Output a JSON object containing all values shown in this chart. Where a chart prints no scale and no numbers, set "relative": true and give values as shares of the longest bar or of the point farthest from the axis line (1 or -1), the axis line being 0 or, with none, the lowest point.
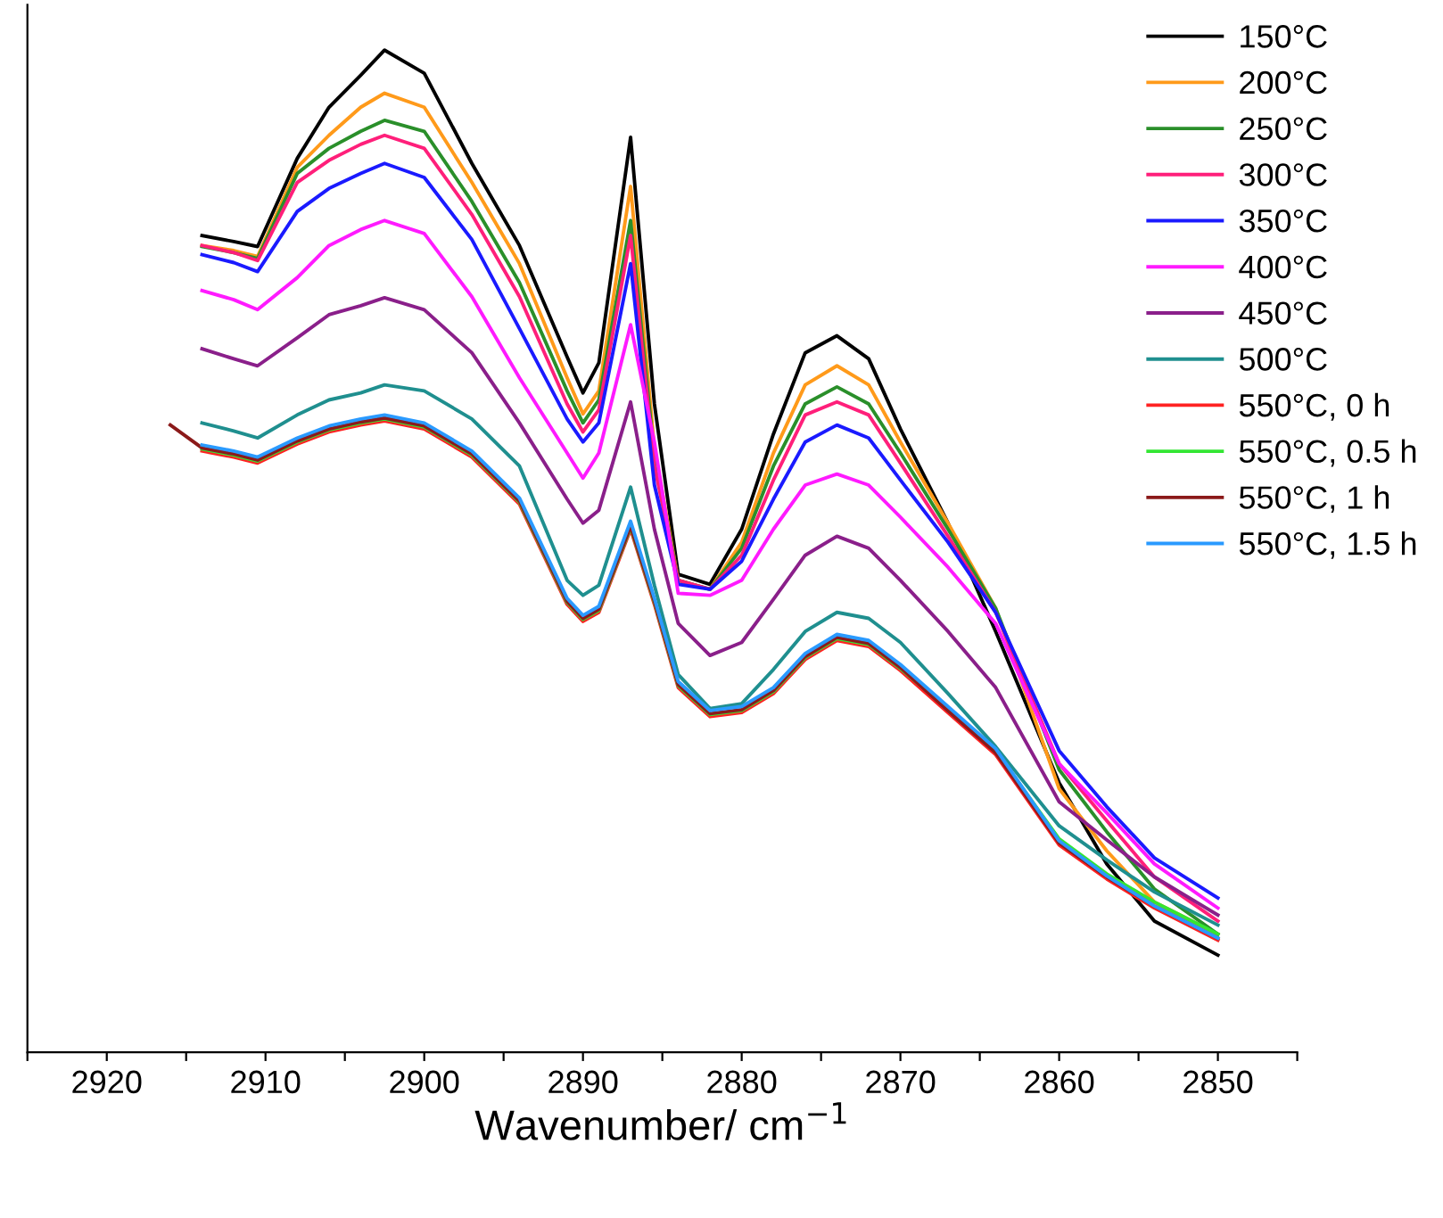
{
  "chart_data": {
    "type": "line",
    "relative": true,
    "xlabel": "Wavenumber/ cm$^{−1}$",
    "x": [
      2914,
      2912,
      2910.5,
      2908,
      2906,
      2904,
      2902.5,
      2900,
      2897,
      2894,
      2891,
      2890,
      2889,
      2887,
      2885.5,
      2884,
      2882,
      2880,
      2878,
      2876,
      2874,
      2872,
      2870,
      2867,
      2864,
      2860,
      2857,
      2854,
      2850
    ],
    "xlim": [
      2925,
      2845
    ],
    "xticks": [
      {
        "value": 2925,
        "label": null
      },
      2920,
      {
        "value": 2915,
        "label": null
      },
      2910,
      {
        "value": 2905,
        "label": null
      },
      2900,
      {
        "value": 2895,
        "label": null
      },
      2890,
      {
        "value": 2885,
        "label": null
      },
      2880,
      {
        "value": 2875,
        "label": null
      },
      2870,
      {
        "value": 2865,
        "label": null
      },
      2860,
      {
        "value": 2855,
        "label": null
      },
      2850,
      {
        "value": 2845,
        "label": null
      }
    ],
    "legend": "top right",
    "grid": false,
    "marker": "none",
    "line_style": "solid",
    "series": [
      {
        "name": "150°C",
        "color": "#000000",
        "values": [
          0.815,
          0.809,
          0.804,
          0.892,
          0.943,
          0.975,
          1.0,
          0.977,
          0.887,
          0.805,
          0.694,
          0.658,
          0.688,
          0.913,
          0.647,
          0.477,
          0.467,
          0.522,
          0.617,
          0.698,
          0.715,
          0.692,
          0.622,
          0.528,
          0.42,
          0.269,
          0.188,
          0.131,
          0.097
        ]
      },
      {
        "name": "200°C",
        "color": "#ff9a1a",
        "values": [
          0.805,
          0.8,
          0.794,
          0.883,
          0.915,
          0.943,
          0.957,
          0.943,
          0.868,
          0.787,
          0.673,
          0.637,
          0.66,
          0.864,
          0.603,
          0.471,
          0.462,
          0.509,
          0.598,
          0.666,
          0.685,
          0.666,
          0.609,
          0.528,
          0.443,
          0.263,
          0.201,
          0.15,
          0.118
        ]
      },
      {
        "name": "250°C",
        "color": "#2a8f2a",
        "values": [
          0.804,
          0.798,
          0.792,
          0.877,
          0.902,
          0.919,
          0.93,
          0.919,
          0.849,
          0.768,
          0.66,
          0.628,
          0.651,
          0.83,
          0.594,
          0.471,
          0.462,
          0.503,
          0.585,
          0.647,
          0.664,
          0.647,
          0.598,
          0.522,
          0.443,
          0.282,
          0.22,
          0.163,
          0.118
        ]
      },
      {
        "name": "300°C",
        "color": "#ff1f7a",
        "values": [
          0.805,
          0.798,
          0.79,
          0.868,
          0.89,
          0.906,
          0.915,
          0.902,
          0.836,
          0.754,
          0.647,
          0.619,
          0.641,
          0.815,
          0.585,
          0.471,
          0.462,
          0.496,
          0.571,
          0.636,
          0.649,
          0.636,
          0.588,
          0.515,
          0.439,
          0.288,
          0.231,
          0.175,
          0.131
        ]
      },
      {
        "name": "350°C",
        "color": "#1a1aff",
        "values": [
          0.796,
          0.788,
          0.779,
          0.839,
          0.862,
          0.877,
          0.887,
          0.873,
          0.811,
          0.722,
          0.632,
          0.609,
          0.628,
          0.787,
          0.566,
          0.467,
          0.462,
          0.49,
          0.552,
          0.609,
          0.626,
          0.613,
          0.571,
          0.509,
          0.439,
          0.301,
          0.245,
          0.194,
          0.154
        ]
      },
      {
        "name": "400°C",
        "color": "#ff1aff",
        "values": [
          0.76,
          0.751,
          0.741,
          0.773,
          0.805,
          0.821,
          0.83,
          0.817,
          0.754,
          0.673,
          0.598,
          0.573,
          0.598,
          0.726,
          0.609,
          0.458,
          0.456,
          0.471,
          0.522,
          0.566,
          0.577,
          0.566,
          0.534,
          0.484,
          0.428,
          0.288,
          0.239,
          0.188,
          0.144
        ]
      },
      {
        "name": "450°C",
        "color": "#8a1f8a",
        "values": [
          0.702,
          0.692,
          0.685,
          0.713,
          0.736,
          0.745,
          0.753,
          0.741,
          0.698,
          0.628,
          0.552,
          0.528,
          0.541,
          0.649,
          0.522,
          0.428,
          0.396,
          0.409,
          0.452,
          0.496,
          0.515,
          0.503,
          0.471,
          0.42,
          0.364,
          0.25,
          0.212,
          0.175,
          0.137
        ]
      },
      {
        "name": "500°C",
        "color": "#1f8f8f",
        "values": [
          0.628,
          0.62,
          0.613,
          0.636,
          0.651,
          0.658,
          0.666,
          0.66,
          0.632,
          0.585,
          0.471,
          0.456,
          0.466,
          0.564,
          0.466,
          0.377,
          0.343,
          0.348,
          0.382,
          0.42,
          0.439,
          0.433,
          0.409,
          0.358,
          0.305,
          0.226,
          0.192,
          0.16,
          0.127
        ]
      },
      {
        "name": "550°C, 0 h",
        "color": "#ff2222",
        "values": [
          0.6,
          0.594,
          0.588,
          0.607,
          0.619,
          0.626,
          0.63,
          0.622,
          0.594,
          0.547,
          0.447,
          0.43,
          0.439,
          0.522,
          0.447,
          0.364,
          0.335,
          0.339,
          0.358,
          0.392,
          0.411,
          0.405,
          0.381,
          0.339,
          0.297,
          0.207,
          0.173,
          0.144,
          0.112
        ]
      },
      {
        "name": "550°C, 0.5 h",
        "color": "#33e633",
        "values": [
          0.602,
          0.596,
          0.59,
          0.609,
          0.621,
          0.628,
          0.632,
          0.624,
          0.596,
          0.549,
          0.449,
          0.432,
          0.441,
          0.524,
          0.449,
          0.366,
          0.337,
          0.341,
          0.36,
          0.394,
          0.413,
          0.407,
          0.383,
          0.343,
          0.301,
          0.213,
          0.178,
          0.15,
          0.118
        ]
      },
      {
        "name": "550°C, 1 h",
        "color": "#8b1a1a",
        "x": [
          2916,
          2914,
          2912,
          2910.5,
          2908,
          2906,
          2904,
          2902.5,
          2900,
          2897,
          2894,
          2891,
          2890,
          2889,
          2887,
          2885.5,
          2884,
          2882,
          2880,
          2878,
          2876,
          2874,
          2872,
          2870,
          2867,
          2864,
          2860,
          2857,
          2854,
          2850
        ],
        "values": [
          0.626,
          0.603,
          0.597,
          0.591,
          0.61,
          0.622,
          0.629,
          0.633,
          0.625,
          0.597,
          0.55,
          0.45,
          0.433,
          0.442,
          0.525,
          0.45,
          0.367,
          0.338,
          0.342,
          0.361,
          0.395,
          0.414,
          0.408,
          0.384,
          0.341,
          0.299,
          0.209,
          0.175,
          0.146,
          0.114
        ]
      },
      {
        "name": "550°C, 1.5 h",
        "color": "#2a9aff",
        "values": [
          0.606,
          0.6,
          0.594,
          0.613,
          0.625,
          0.632,
          0.636,
          0.628,
          0.6,
          0.553,
          0.453,
          0.436,
          0.445,
          0.53,
          0.453,
          0.37,
          0.341,
          0.345,
          0.364,
          0.398,
          0.417,
          0.411,
          0.387,
          0.345,
          0.303,
          0.211,
          0.176,
          0.146,
          0.114
        ]
      }
    ]
  }
}
